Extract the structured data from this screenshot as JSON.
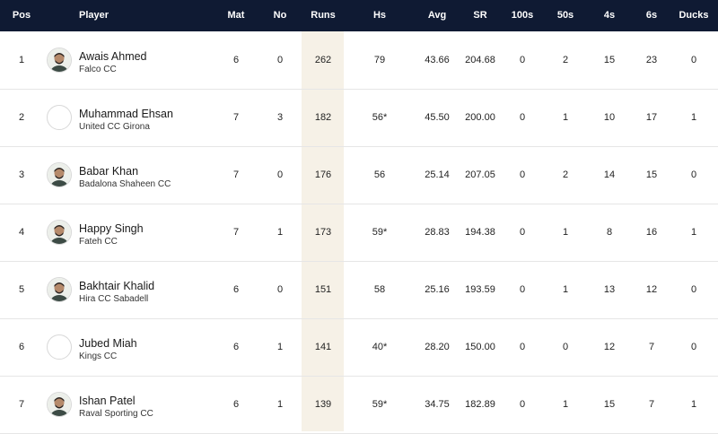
{
  "columns": {
    "pos": "Pos",
    "player": "Player",
    "mat": "Mat",
    "no": "No",
    "runs": "Runs",
    "hs": "Hs",
    "avg": "Avg",
    "sr": "SR",
    "hundreds": "100s",
    "fifties": "50s",
    "fours": "4s",
    "sixes": "6s",
    "ducks": "Ducks"
  },
  "colors": {
    "header_bg": "#0f1a33",
    "runs_highlight": "#f6f1e7"
  },
  "rows": [
    {
      "pos": "1",
      "name": "Awais Ahmed",
      "team": "Falco CC",
      "mat": "6",
      "no": "0",
      "runs": "262",
      "hs": "79",
      "avg": "43.66",
      "sr": "204.68",
      "hundreds": "0",
      "fifties": "2",
      "fours": "15",
      "sixes": "23",
      "ducks": "0",
      "avatar": "photo"
    },
    {
      "pos": "2",
      "name": "Muhammad Ehsan",
      "team": "United CC Girona",
      "mat": "7",
      "no": "3",
      "runs": "182",
      "hs": "56*",
      "avg": "45.50",
      "sr": "200.00",
      "hundreds": "0",
      "fifties": "1",
      "fours": "10",
      "sixes": "17",
      "ducks": "1",
      "avatar": "blank"
    },
    {
      "pos": "3",
      "name": "Babar Khan",
      "team": "Badalona Shaheen CC",
      "mat": "7",
      "no": "0",
      "runs": "176",
      "hs": "56",
      "avg": "25.14",
      "sr": "207.05",
      "hundreds": "0",
      "fifties": "2",
      "fours": "14",
      "sixes": "15",
      "ducks": "0",
      "avatar": "photo"
    },
    {
      "pos": "4",
      "name": "Happy Singh",
      "team": "Fateh CC",
      "mat": "7",
      "no": "1",
      "runs": "173",
      "hs": "59*",
      "avg": "28.83",
      "sr": "194.38",
      "hundreds": "0",
      "fifties": "1",
      "fours": "8",
      "sixes": "16",
      "ducks": "1",
      "avatar": "photo"
    },
    {
      "pos": "5",
      "name": "Bakhtair Khalid",
      "team": "Hira CC Sabadell",
      "mat": "6",
      "no": "0",
      "runs": "151",
      "hs": "58",
      "avg": "25.16",
      "sr": "193.59",
      "hundreds": "0",
      "fifties": "1",
      "fours": "13",
      "sixes": "12",
      "ducks": "0",
      "avatar": "photo"
    },
    {
      "pos": "6",
      "name": "Jubed Miah",
      "team": "Kings CC",
      "mat": "6",
      "no": "1",
      "runs": "141",
      "hs": "40*",
      "avg": "28.20",
      "sr": "150.00",
      "hundreds": "0",
      "fifties": "0",
      "fours": "12",
      "sixes": "7",
      "ducks": "0",
      "avatar": "blank"
    },
    {
      "pos": "7",
      "name": "Ishan Patel",
      "team": "Raval Sporting CC",
      "mat": "6",
      "no": "1",
      "runs": "139",
      "hs": "59*",
      "avg": "34.75",
      "sr": "182.89",
      "hundreds": "0",
      "fifties": "1",
      "fours": "15",
      "sixes": "7",
      "ducks": "1",
      "avatar": "photo"
    }
  ]
}
